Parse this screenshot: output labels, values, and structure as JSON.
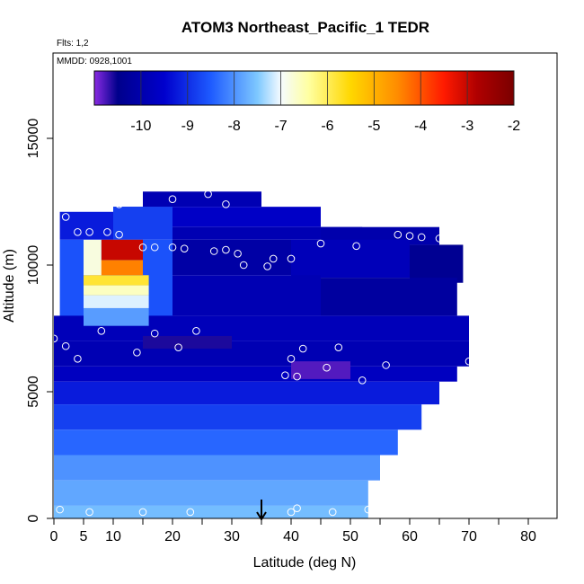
{
  "chart_data": {
    "type": "heatmap",
    "title": "ATOM3 Northeast_Pacific_1 TEDR",
    "flights_text": "Flts: 1,2",
    "dates_text": "MMDD: 0928,1001",
    "xlabel": "Latitude (deg N)",
    "ylabel": "Altitude (m)",
    "xlim": [
      0,
      85
    ],
    "ylim": [
      0,
      18000
    ],
    "x_ticks": [
      0,
      5,
      10,
      20,
      30,
      40,
      50,
      60,
      70,
      80
    ],
    "x_minor_ticks": [
      15,
      25,
      35,
      45,
      55,
      65,
      75,
      85
    ],
    "y_ticks": [
      0,
      5000,
      10000,
      15000
    ],
    "colorbar": {
      "min": -11,
      "max": -2,
      "ticks": [
        -10,
        -9,
        -8,
        -7,
        -6,
        -5,
        -4,
        -3,
        -2
      ],
      "colors": [
        "#8a2be2",
        "#00008b",
        "#0000cd",
        "#1e5bff",
        "#7ec8ff",
        "#f5fbff",
        "#ffffa0",
        "#ffd700",
        "#ff8c00",
        "#ff1a00",
        "#b00000",
        "#7a0000"
      ],
      "color_stops": [
        -11,
        -10.5,
        -9.5,
        -8.5,
        -7.5,
        -7.0,
        -6.4,
        -5.5,
        -4.5,
        -3.5,
        -2.8,
        -2.0
      ]
    },
    "marker_latitude": 35,
    "cells": [
      {
        "lat": [
          15,
          35
        ],
        "alt": [
          12300,
          12900
        ],
        "value": -9.9
      },
      {
        "lat": [
          10,
          45
        ],
        "alt": [
          11500,
          12300
        ],
        "value": -9.6
      },
      {
        "lat": [
          1,
          10
        ],
        "alt": [
          11000,
          12100
        ],
        "value": -9.2
      },
      {
        "lat": [
          10,
          20
        ],
        "alt": [
          11000,
          12300
        ],
        "value": -8.8
      },
      {
        "lat": [
          20,
          52
        ],
        "alt": [
          11000,
          11500
        ],
        "value": -9.9
      },
      {
        "lat": [
          45,
          65
        ],
        "alt": [
          10800,
          11500
        ],
        "value": -10.0
      },
      {
        "lat": [
          1,
          20
        ],
        "alt": [
          7600,
          11000
        ],
        "value": -8.6
      },
      {
        "lat": [
          20,
          40
        ],
        "alt": [
          9600,
          11000
        ],
        "value": -10.1
      },
      {
        "lat": [
          40,
          60
        ],
        "alt": [
          9500,
          11000
        ],
        "value": -9.8
      },
      {
        "lat": [
          60,
          69
        ],
        "alt": [
          9300,
          10800
        ],
        "value": -10.4
      },
      {
        "lat": [
          20,
          45
        ],
        "alt": [
          8000,
          9600
        ],
        "value": -9.9
      },
      {
        "lat": [
          45,
          68
        ],
        "alt": [
          8000,
          9500
        ],
        "value": -10.2
      },
      {
        "lat": [
          0,
          70
        ],
        "alt": [
          7000,
          8000
        ],
        "value": -9.8
      },
      {
        "lat": [
          0,
          70
        ],
        "alt": [
          6000,
          7000
        ],
        "value": -9.9
      },
      {
        "lat": [
          15,
          30
        ],
        "alt": [
          6700,
          7200
        ],
        "value": -10.6
      },
      {
        "lat": [
          0,
          68
        ],
        "alt": [
          5400,
          6000
        ],
        "value": -9.7
      },
      {
        "lat": [
          40,
          50
        ],
        "alt": [
          5500,
          6200
        ],
        "value": -10.8
      },
      {
        "lat": [
          0,
          65
        ],
        "alt": [
          4500,
          5400
        ],
        "value": -9.2
      },
      {
        "lat": [
          0,
          62
        ],
        "alt": [
          3500,
          4500
        ],
        "value": -8.8
      },
      {
        "lat": [
          0,
          58
        ],
        "alt": [
          2500,
          3500
        ],
        "value": -8.4
      },
      {
        "lat": [
          0,
          55
        ],
        "alt": [
          1500,
          2500
        ],
        "value": -8.0
      },
      {
        "lat": [
          0,
          53
        ],
        "alt": [
          500,
          1500
        ],
        "value": -7.8
      },
      {
        "lat": [
          0,
          53
        ],
        "alt": [
          0,
          500
        ],
        "value": -7.6
      },
      {
        "lat": [
          5,
          16
        ],
        "alt": [
          7600,
          8300
        ],
        "value": -7.9
      },
      {
        "lat": [
          5,
          16
        ],
        "alt": [
          8300,
          8800
        ],
        "value": -7.1
      },
      {
        "lat": [
          5,
          16
        ],
        "alt": [
          8800,
          9200
        ],
        "value": -6.6
      },
      {
        "lat": [
          5,
          16
        ],
        "alt": [
          9200,
          9600
        ],
        "value": -5.8
      },
      {
        "lat": [
          6,
          15
        ],
        "alt": [
          9600,
          10200
        ],
        "value": -4.4
      },
      {
        "lat": [
          8,
          15
        ],
        "alt": [
          10200,
          11000
        ],
        "value": -3.0
      },
      {
        "lat": [
          5,
          8
        ],
        "alt": [
          9600,
          11000
        ],
        "value": -6.8
      }
    ],
    "points": [
      {
        "x": 2,
        "y": 11900
      },
      {
        "x": 4,
        "y": 11300
      },
      {
        "x": 6,
        "y": 11300
      },
      {
        "x": 9,
        "y": 11300
      },
      {
        "x": 11,
        "y": 11200
      },
      {
        "x": 11,
        "y": 12400
      },
      {
        "x": 15,
        "y": 10700
      },
      {
        "x": 17,
        "y": 10700
      },
      {
        "x": 20,
        "y": 12600
      },
      {
        "x": 20,
        "y": 10700
      },
      {
        "x": 22,
        "y": 10650
      },
      {
        "x": 26,
        "y": 12800
      },
      {
        "x": 27,
        "y": 10550
      },
      {
        "x": 29,
        "y": 10600
      },
      {
        "x": 29,
        "y": 12400
      },
      {
        "x": 31,
        "y": 10450
      },
      {
        "x": 32,
        "y": 10000
      },
      {
        "x": 36,
        "y": 9950
      },
      {
        "x": 37,
        "y": 10250
      },
      {
        "x": 40,
        "y": 10250
      },
      {
        "x": 45,
        "y": 10850
      },
      {
        "x": 51,
        "y": 10750
      },
      {
        "x": 58,
        "y": 11200
      },
      {
        "x": 60,
        "y": 11150
      },
      {
        "x": 62,
        "y": 11100
      },
      {
        "x": 65,
        "y": 11050
      },
      {
        "x": 68,
        "y": 11000
      },
      {
        "x": 0,
        "y": 7100
      },
      {
        "x": 2,
        "y": 6800
      },
      {
        "x": 4,
        "y": 6300
      },
      {
        "x": 8,
        "y": 7400
      },
      {
        "x": 14,
        "y": 6550
      },
      {
        "x": 17,
        "y": 7300
      },
      {
        "x": 21,
        "y": 6750
      },
      {
        "x": 24,
        "y": 7400
      },
      {
        "x": 40,
        "y": 6300
      },
      {
        "x": 42,
        "y": 6700
      },
      {
        "x": 48,
        "y": 6750
      },
      {
        "x": 46,
        "y": 5950
      },
      {
        "x": 39,
        "y": 5650
      },
      {
        "x": 41,
        "y": 5600
      },
      {
        "x": 52,
        "y": 5450
      },
      {
        "x": 56,
        "y": 6050
      },
      {
        "x": 70,
        "y": 6200
      },
      {
        "x": 1,
        "y": 350
      },
      {
        "x": 6,
        "y": 250
      },
      {
        "x": 15,
        "y": 250
      },
      {
        "x": 23,
        "y": 250
      },
      {
        "x": 40,
        "y": 250
      },
      {
        "x": 41,
        "y": 400
      },
      {
        "x": 47,
        "y": 250
      },
      {
        "x": 53,
        "y": 350
      }
    ]
  }
}
